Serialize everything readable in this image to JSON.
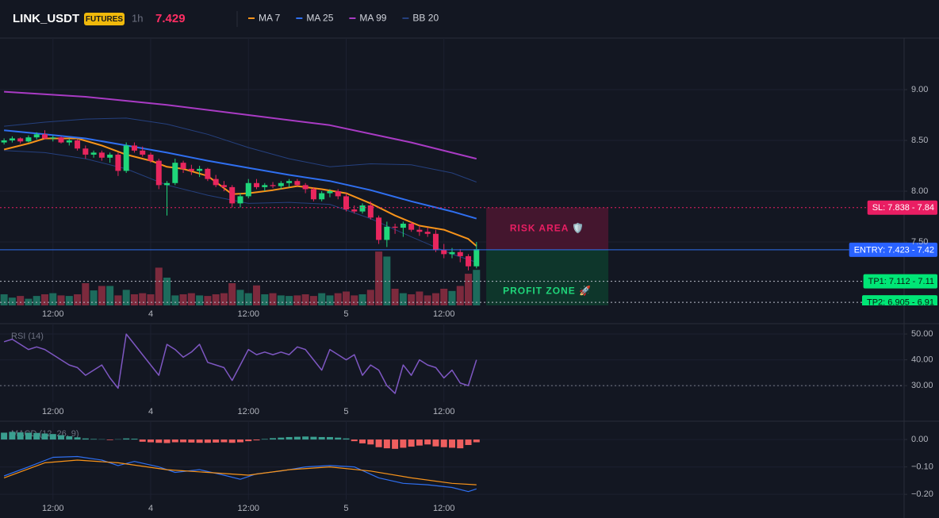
{
  "header": {
    "symbol": "LINK_USDT",
    "badge": "FUTURES",
    "interval": "1h",
    "last_price": "7.429"
  },
  "chart_data": [
    {
      "type": "candlestick",
      "xlim": [
        -0.5,
        110.5
      ],
      "ylim": [
        6.875,
        9.508
      ],
      "yticks": [
        {
          "value": 9,
          "label": "9.00"
        },
        {
          "value": 8.5,
          "label": "8.50"
        },
        {
          "value": 8,
          "label": "8.00"
        },
        {
          "value": 7.5,
          "label": "7.50"
        }
      ],
      "xticks": [
        {
          "value": 6,
          "label": "12:00"
        },
        {
          "value": 18,
          "label": "4"
        },
        {
          "value": 30,
          "label": "12:00"
        },
        {
          "value": 42,
          "label": "5"
        },
        {
          "value": 54,
          "label": "12:00"
        }
      ],
      "up_color": "#1fd67a",
      "down_color": "#e8265e",
      "open": [
        8.48,
        8.5,
        8.52,
        8.49,
        8.53,
        8.56,
        8.52,
        8.53,
        8.48,
        8.5,
        8.42,
        8.36,
        8.38,
        8.33,
        8.36,
        8.2,
        8.45,
        8.4,
        8.36,
        8.3,
        8.06,
        8.08,
        8.28,
        8.22,
        8.2,
        8.22,
        8.12,
        8.06,
        8.04,
        7.88,
        7.95,
        8.08,
        8.04,
        8.06,
        8.05,
        8.08,
        8.1,
        8.06,
        8.02,
        7.92,
        7.98,
        8.0,
        7.95,
        7.82,
        7.8,
        7.86,
        7.74,
        7.52,
        7.65,
        7.64,
        7.68,
        7.62,
        7.6,
        7.58,
        7.42,
        7.38,
        7.4,
        7.36,
        7.26
      ],
      "high": [
        8.52,
        8.54,
        8.53,
        8.55,
        8.58,
        8.6,
        8.55,
        8.54,
        8.52,
        8.51,
        8.45,
        8.4,
        8.4,
        8.38,
        8.38,
        8.48,
        8.48,
        8.44,
        8.38,
        8.32,
        8.1,
        8.32,
        8.3,
        8.26,
        8.25,
        8.23,
        8.16,
        8.1,
        8.06,
        7.98,
        8.12,
        8.12,
        8.08,
        8.09,
        8.1,
        8.12,
        8.12,
        8.08,
        8.04,
        8.0,
        8.02,
        8.02,
        7.98,
        7.86,
        7.88,
        7.9,
        7.76,
        7.7,
        7.68,
        7.7,
        7.7,
        7.66,
        7.64,
        7.62,
        7.48,
        7.44,
        7.43,
        7.38,
        7.5
      ],
      "low": [
        8.46,
        8.48,
        8.47,
        8.48,
        8.51,
        8.51,
        8.49,
        8.47,
        8.45,
        8.4,
        8.32,
        8.33,
        8.3,
        8.28,
        8.15,
        8.18,
        8.38,
        8.34,
        8.28,
        8.02,
        7.76,
        8.06,
        8.18,
        8.16,
        8.14,
        8.1,
        8.04,
        8.0,
        7.84,
        7.84,
        7.93,
        8.02,
        8.0,
        8.03,
        8.02,
        8.04,
        8.05,
        7.98,
        7.9,
        7.9,
        7.94,
        7.92,
        7.8,
        7.78,
        7.78,
        7.72,
        7.48,
        7.45,
        7.58,
        7.55,
        7.6,
        7.56,
        7.55,
        7.4,
        7.34,
        7.34,
        7.3,
        7.22,
        7.24
      ],
      "close": [
        8.5,
        8.52,
        8.49,
        8.53,
        8.56,
        8.52,
        8.53,
        8.48,
        8.5,
        8.42,
        8.36,
        8.38,
        8.33,
        8.36,
        8.2,
        8.45,
        8.4,
        8.36,
        8.3,
        8.06,
        8.08,
        8.28,
        8.22,
        8.2,
        8.22,
        8.12,
        8.06,
        8.04,
        7.88,
        7.95,
        8.08,
        8.04,
        8.06,
        8.05,
        8.08,
        8.1,
        8.06,
        8.02,
        7.92,
        7.98,
        8.0,
        7.95,
        7.82,
        7.8,
        7.86,
        7.74,
        7.52,
        7.65,
        7.64,
        7.68,
        7.62,
        7.6,
        7.58,
        7.42,
        7.38,
        7.4,
        7.36,
        7.26,
        7.429
      ],
      "volume": {
        "up_color": "#1d6b5c",
        "down_color": "#7c2a3d",
        "values": [
          20,
          14,
          17,
          12,
          17,
          20,
          22,
          18,
          17,
          20,
          40,
          27,
          35,
          35,
          18,
          28,
          20,
          22,
          20,
          68,
          50,
          18,
          20,
          22,
          18,
          17,
          20,
          22,
          40,
          28,
          22,
          36,
          20,
          22,
          18,
          17,
          18,
          20,
          17,
          22,
          18,
          22,
          25,
          18,
          20,
          28,
          97,
          88,
          30,
          22,
          20,
          25,
          18,
          22,
          30,
          26,
          35,
          57,
          64
        ]
      },
      "series": [
        {
          "name": "MA 7",
          "color": "#f7931a",
          "x": [
            0,
            3,
            5,
            9,
            12,
            15,
            18,
            20,
            22,
            25,
            28,
            30,
            33,
            36,
            39,
            42,
            45,
            48,
            51,
            54,
            57,
            58
          ],
          "values": [
            8.41,
            8.47,
            8.52,
            8.52,
            8.45,
            8.36,
            8.3,
            8.24,
            8.22,
            8.15,
            7.97,
            7.98,
            8.01,
            8.05,
            8.02,
            7.98,
            7.88,
            7.76,
            7.66,
            7.62,
            7.53,
            7.46
          ]
        },
        {
          "name": "MA 25",
          "color": "#2f6ff0",
          "x": [
            0,
            5,
            10,
            15,
            20,
            25,
            30,
            35,
            40,
            45,
            50,
            55,
            58
          ],
          "values": [
            8.6,
            8.56,
            8.52,
            8.45,
            8.38,
            8.3,
            8.23,
            8.16,
            8.1,
            8.01,
            7.9,
            7.8,
            7.73
          ]
        },
        {
          "name": "MA 99",
          "color": "#a93bc4",
          "x": [
            0,
            10,
            20,
            30,
            40,
            50,
            58
          ],
          "values": [
            8.98,
            8.93,
            8.85,
            8.75,
            8.65,
            8.48,
            8.32
          ]
        },
        {
          "name": "BB 20",
          "color": "#25407e",
          "x": [
            0,
            5,
            10,
            15,
            20,
            25,
            30,
            35,
            40,
            45,
            50,
            55,
            58
          ],
          "values": [
            8.64,
            8.68,
            8.71,
            8.72,
            8.66,
            8.56,
            8.43,
            8.32,
            8.24,
            8.27,
            8.26,
            8.18,
            8.09
          ],
          "lower": [
            8.4,
            8.38,
            8.32,
            8.22,
            8.06,
            7.96,
            7.88,
            7.89,
            7.87,
            7.73,
            7.55,
            7.38,
            7.3
          ]
        }
      ],
      "levels": [
        {
          "label": "SL: 7.838 - 7.84",
          "value": 7.838,
          "color": "#e91e63",
          "text_color": "#ffffff",
          "line_color": "#e91e63",
          "dash": "2 3"
        },
        {
          "label": "ENTRY: 7.423 - 7.42",
          "value": 7.423,
          "color": "#2962ff",
          "text_color": "#ffffff",
          "line_color": "#2f6ff0",
          "dash": "none"
        },
        {
          "label": "TP1: 7.112 - 7.11",
          "value": 7.112,
          "color": "#00e676",
          "text_color": "#0b1a12",
          "line_color": "#b8bcc8",
          "dash": "2 3"
        },
        {
          "label": "TP2: 6.905 - 6.91",
          "value": 6.905,
          "color": "#00e676",
          "text_color": "#0b1a12",
          "line_color": "#b8bcc8",
          "dash": "2 3"
        }
      ],
      "zones": [
        {
          "label": "RISK AREA 🛡️",
          "range": [
            7.423,
            7.838
          ],
          "color": "#4a1630",
          "text_color": "#e91e63"
        },
        {
          "label": "PROFIT ZONE 🚀",
          "range": [
            6.6,
            7.423
          ],
          "color": "#0e3a2c",
          "text_color": "#1fd67a"
        }
      ]
    },
    {
      "type": "line",
      "label": "RSI (14)",
      "xlim": [
        -0.5,
        110.5
      ],
      "ylim": [
        24.2,
        53.4
      ],
      "yticks": [
        {
          "value": 50,
          "label": "50.00"
        },
        {
          "value": 40,
          "label": "40.00"
        },
        {
          "value": 30,
          "label": "30.00"
        }
      ],
      "xticks": [
        {
          "value": 6,
          "label": "12:00"
        },
        {
          "value": 18,
          "label": "4"
        },
        {
          "value": 30,
          "label": "12:00"
        },
        {
          "value": 42,
          "label": "5"
        },
        {
          "value": 54,
          "label": "12:00"
        }
      ],
      "levels": [
        30
      ],
      "series": [
        {
          "color": "#7e57c2",
          "values": [
            47,
            48,
            46,
            44,
            45,
            44,
            42,
            40,
            38,
            37,
            34,
            36,
            38,
            33,
            29,
            50,
            46,
            42,
            38,
            34,
            46,
            44,
            41,
            43,
            46,
            39,
            38,
            37,
            32,
            38,
            44,
            42,
            43,
            42,
            43,
            42,
            45,
            44,
            40,
            36,
            44,
            42,
            40,
            42,
            34,
            38,
            36,
            30,
            27,
            38,
            34,
            40,
            38,
            37,
            33,
            36,
            31,
            30,
            40
          ]
        }
      ]
    },
    {
      "type": "macd",
      "label": "MACD (12, 26, 9)",
      "xlim": [
        -0.5,
        110.5
      ],
      "ylim": [
        -0.214,
        0.061
      ],
      "yticks": [
        {
          "value": 0,
          "label": "0.00"
        },
        {
          "value": -0.1,
          "label": "−0.10"
        },
        {
          "value": -0.2,
          "label": "−0.20"
        }
      ],
      "xticks": [
        {
          "value": 6,
          "label": "12:00"
        },
        {
          "value": 18,
          "label": "4"
        },
        {
          "value": 30,
          "label": "12:00"
        },
        {
          "value": 42,
          "label": "5"
        },
        {
          "value": 54,
          "label": "12:00"
        }
      ],
      "histogram": {
        "up_color": "#3a9e8f",
        "down_color": "#ef5f5f",
        "values": [
          0.025,
          0.028,
          0.026,
          0.025,
          0.024,
          0.022,
          0.02,
          0.016,
          0.012,
          0.008,
          0.004,
          0.002,
          0.001,
          -0.002,
          0.001,
          0.004,
          0.003,
          -0.008,
          -0.01,
          -0.012,
          -0.013,
          -0.01,
          -0.01,
          -0.011,
          -0.012,
          -0.012,
          -0.011,
          -0.01,
          -0.012,
          -0.01,
          -0.006,
          -0.003,
          0.002,
          0.005,
          0.007,
          0.009,
          0.01,
          0.011,
          0.01,
          0.009,
          0.009,
          0.007,
          0.004,
          -0.006,
          -0.014,
          -0.018,
          -0.028,
          -0.032,
          -0.034,
          -0.03,
          -0.026,
          -0.022,
          -0.018,
          -0.025,
          -0.028,
          -0.03,
          -0.032,
          -0.02,
          -0.01
        ]
      },
      "series": [
        {
          "color": "#2f6ff0",
          "x": [
            0,
            3,
            6,
            9,
            12,
            14,
            16,
            19,
            21,
            24,
            27,
            29,
            31,
            34,
            37,
            40,
            43,
            46,
            49,
            52,
            55,
            57,
            58
          ],
          "values": [
            -0.133,
            -0.1,
            -0.065,
            -0.062,
            -0.075,
            -0.095,
            -0.08,
            -0.1,
            -0.12,
            -0.11,
            -0.13,
            -0.145,
            -0.125,
            -0.115,
            -0.1,
            -0.095,
            -0.1,
            -0.14,
            -0.16,
            -0.165,
            -0.175,
            -0.19,
            -0.18
          ]
        },
        {
          "color": "#f7931a",
          "x": [
            0,
            5,
            9,
            14,
            20,
            25,
            30,
            35,
            40,
            45,
            50,
            55,
            58
          ],
          "values": [
            -0.14,
            -0.085,
            -0.075,
            -0.085,
            -0.11,
            -0.12,
            -0.13,
            -0.11,
            -0.1,
            -0.115,
            -0.14,
            -0.16,
            -0.165
          ]
        }
      ]
    }
  ]
}
